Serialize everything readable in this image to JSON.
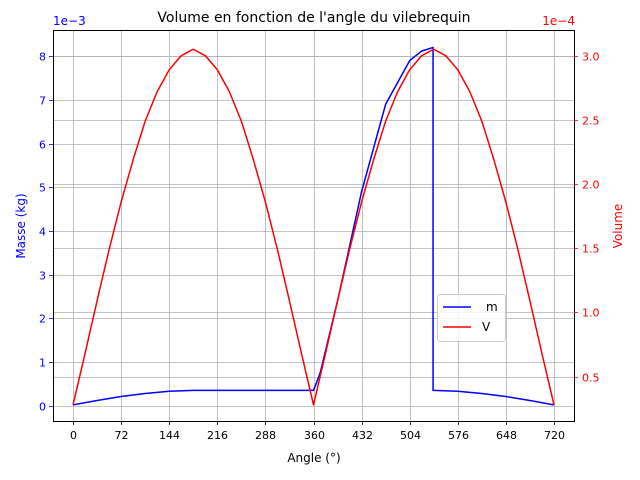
{
  "chart_data": {
    "type": "line",
    "title": "Volume en fonction de l'angle du vilebrequin",
    "xlabel": "Angle (°)",
    "xlim": [
      -30,
      750
    ],
    "xticks": [
      0,
      72,
      144,
      216,
      288,
      360,
      432,
      504,
      576,
      648,
      720
    ],
    "grid": true,
    "legend_position": "right",
    "axes": {
      "left": {
        "label": "Masse (kg)",
        "color": "#0000ff",
        "offset_text": "1e−3",
        "scale": 0.001,
        "ylim": [
          -0.35,
          8.6
        ],
        "ticks": [
          0,
          1,
          2,
          3,
          4,
          5,
          6,
          7,
          8
        ]
      },
      "right": {
        "label": "Volume",
        "color": "#ff0000",
        "offset_text": "1e−4",
        "scale": 0.0001,
        "ylim": [
          0.154,
          3.2
        ],
        "ticks": [
          0.5,
          1.0,
          1.5,
          2.0,
          2.5,
          3.0
        ],
        "tick_labels": [
          "0.5",
          "1.0",
          "1.5",
          "2.0",
          "2.5",
          "3.0"
        ]
      }
    },
    "series": [
      {
        "name": "m",
        "axis": "left",
        "color": "#0000ff",
        "x": [
          0,
          36,
          72,
          108,
          144,
          180,
          216,
          252,
          288,
          324,
          355,
          360,
          370,
          396,
          432,
          468,
          504,
          522,
          535,
          539,
          539.01,
          540,
          576,
          612,
          648,
          684,
          720
        ],
        "values": [
          0.02,
          0.12,
          0.21,
          0.28,
          0.33,
          0.35,
          0.35,
          0.35,
          0.35,
          0.35,
          0.35,
          0.35,
          0.75,
          2.4,
          4.9,
          6.9,
          7.9,
          8.12,
          8.18,
          8.2,
          0.35,
          0.35,
          0.33,
          0.28,
          0.21,
          0.12,
          0.02
        ]
      },
      {
        "name": "V",
        "axis": "right",
        "color": "#ff0000",
        "x": [
          0,
          18,
          36,
          54,
          72,
          90,
          108,
          126,
          144,
          162,
          180,
          198,
          216,
          234,
          252,
          270,
          288,
          306,
          324,
          342,
          360,
          378,
          396,
          414,
          432,
          450,
          468,
          486,
          504,
          522,
          540,
          558,
          576,
          594,
          612,
          630,
          648,
          666,
          684,
          702,
          720
        ],
        "values": [
          0.28,
          0.68,
          1.09,
          1.49,
          1.86,
          2.19,
          2.49,
          2.72,
          2.89,
          3.0,
          3.05,
          3.0,
          2.89,
          2.72,
          2.49,
          2.19,
          1.86,
          1.49,
          1.09,
          0.68,
          0.28,
          0.68,
          1.09,
          1.49,
          1.86,
          2.19,
          2.49,
          2.72,
          2.89,
          3.0,
          3.05,
          3.0,
          2.89,
          2.72,
          2.49,
          2.19,
          1.86,
          1.49,
          1.09,
          0.68,
          0.28
        ]
      }
    ]
  }
}
